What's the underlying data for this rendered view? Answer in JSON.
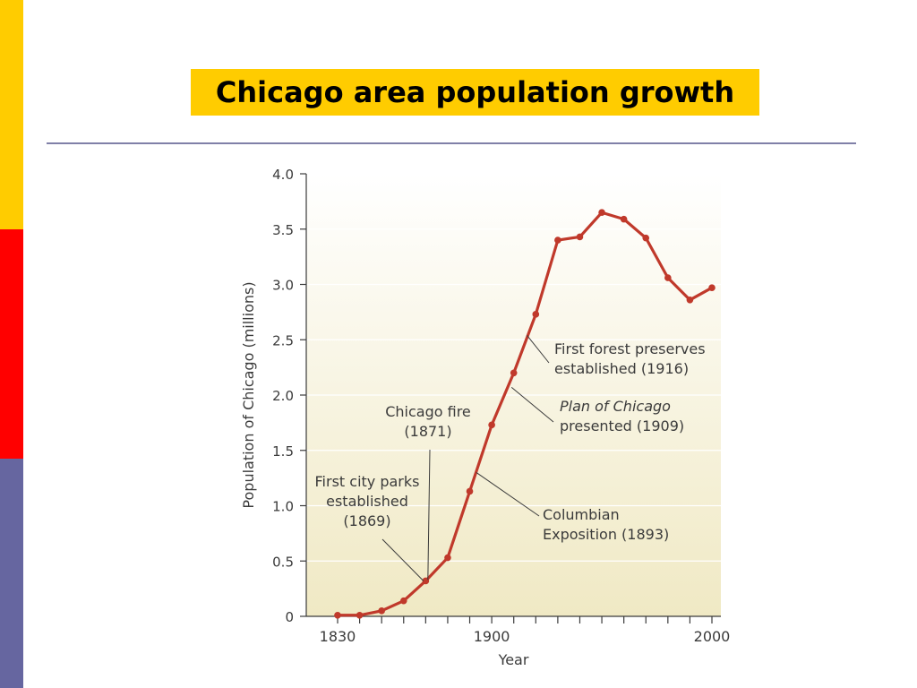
{
  "slide": {
    "title": "Chicago area population growth",
    "colors": {
      "sidebar": [
        "#FFCC00",
        "#FF0000",
        "#6666A0"
      ],
      "title_bg": "#FFCC00",
      "rule": "#8080A8",
      "line": "#C0392B",
      "plot_bg_top": "#FFFFFF",
      "plot_bg_bottom": "#F0E9C4"
    }
  },
  "chart_data": {
    "type": "line",
    "title": "",
    "xlabel": "Year",
    "ylabel": "Population of Chicago (millions)",
    "xlim": [
      1820,
      2000
    ],
    "ylim": [
      0,
      4.0
    ],
    "y_ticks": [
      "0",
      "0.5",
      "1.0",
      "1.5",
      "2.0",
      "2.5",
      "3.0",
      "3.5",
      "4.0"
    ],
    "x_tick_labels": [
      "1830",
      "1900",
      "2000"
    ],
    "grid": "horizontal",
    "series": [
      {
        "x": [
          1830,
          1840,
          1850,
          1860,
          1870,
          1880,
          1890,
          1900,
          1910,
          1920,
          1930,
          1940,
          1950,
          1960,
          1970,
          1980,
          1990,
          2000
        ],
        "y": [
          0.01,
          0.01,
          0.05,
          0.14,
          0.32,
          0.53,
          1.13,
          1.73,
          2.2,
          2.73,
          3.4,
          3.43,
          3.65,
          3.59,
          3.42,
          3.06,
          2.86,
          2.97
        ]
      }
    ],
    "annotations": [
      {
        "lines": [
          "First city parks",
          "established",
          "(1869)"
        ],
        "x": 1869,
        "y": 0.32
      },
      {
        "lines": [
          "Chicago fire",
          "(1871)"
        ],
        "x": 1871,
        "y": 0.33
      },
      {
        "lines": [
          "Columbian",
          "Exposition (1893)"
        ],
        "x": 1893,
        "y": 1.3
      },
      {
        "lines": [
          "Plan of Chicago",
          "presented (1909)"
        ],
        "x": 1909,
        "y": 2.07
      },
      {
        "lines": [
          "First forest preserves",
          "established (1916)"
        ],
        "x": 1916,
        "y": 2.54
      }
    ]
  }
}
